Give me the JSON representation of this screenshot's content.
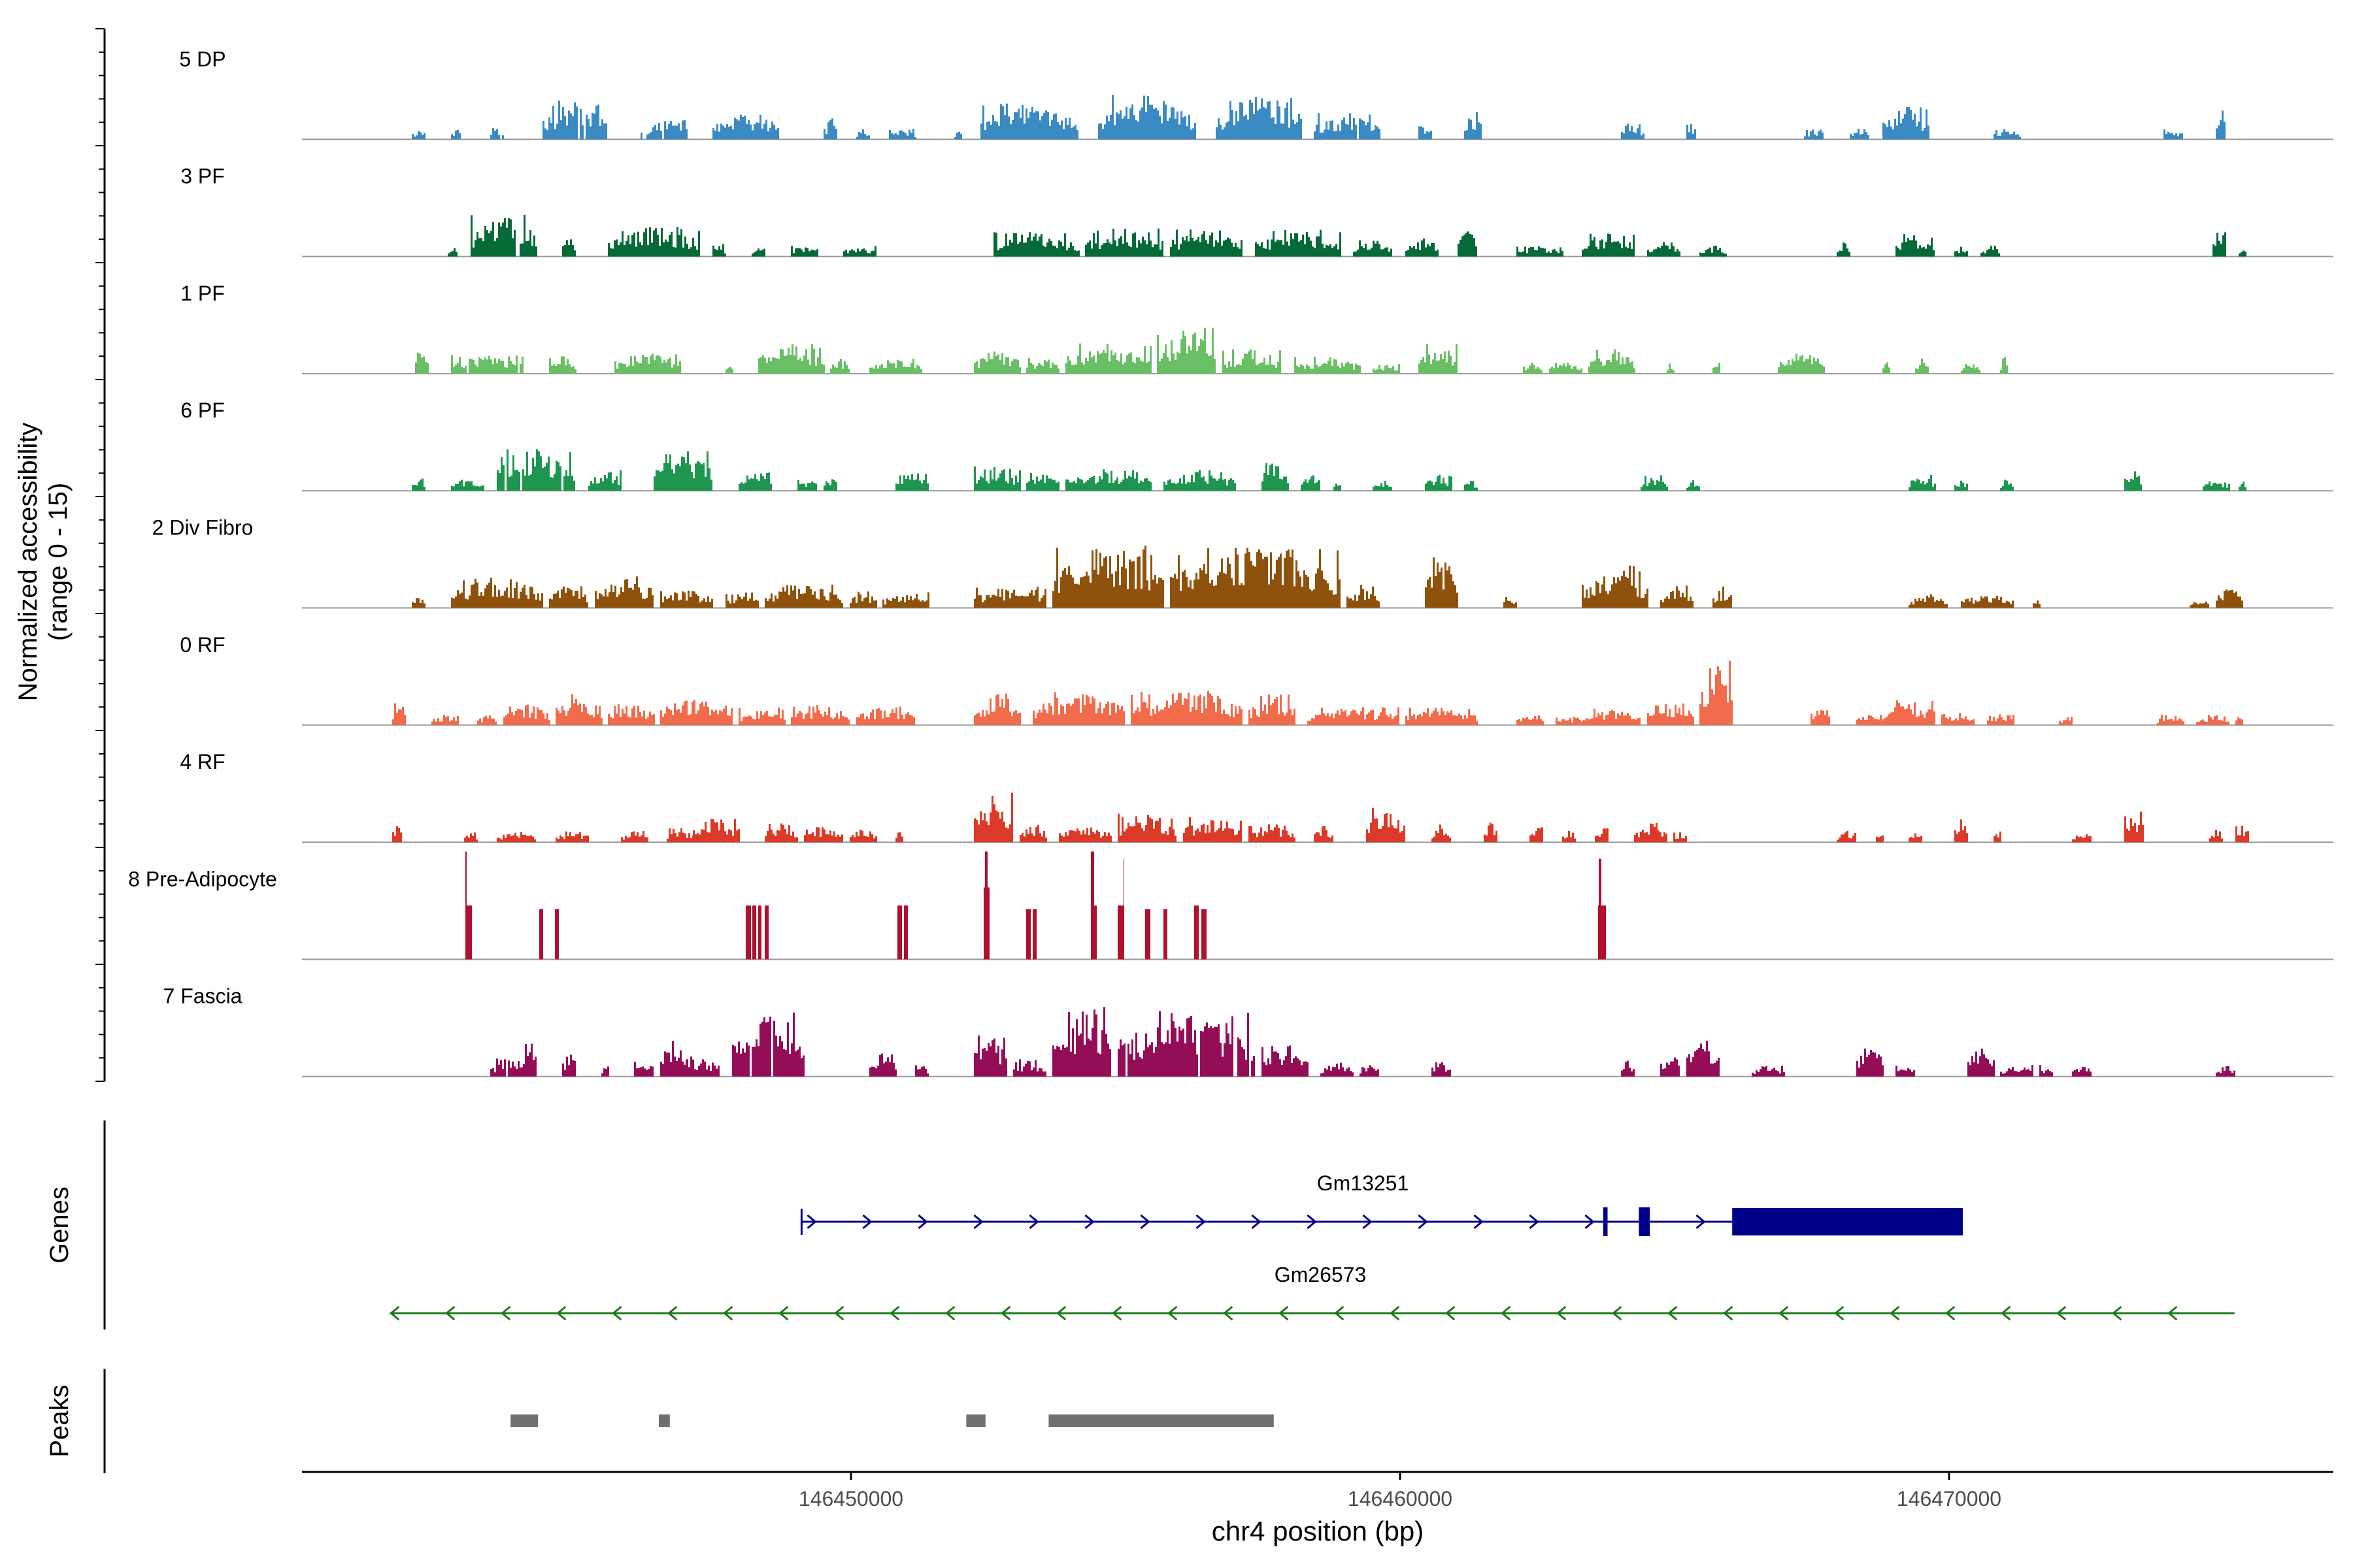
{
  "chart_data": {
    "type": "area",
    "title": "",
    "ylabel_lines": [
      "Normalized accessibility",
      "(range 0 - 15)"
    ],
    "xlabel": "chr4 position (bp)",
    "xlim": [
      146440000,
      146477000
    ],
    "ylim": [
      0,
      15
    ],
    "xticks": [
      146450000,
      146460000,
      146470000
    ],
    "xtick_labels": [
      "146450000",
      "146460000",
      "146470000"
    ],
    "baseline_color": "#999999",
    "tracks": [
      {
        "name": "5 DP",
        "color": "#3B8AC4",
        "profile": "dp"
      },
      {
        "name": "3 PF",
        "color": "#066A38",
        "profile": "pf3"
      },
      {
        "name": "1 PF",
        "color": "#6ABF66",
        "profile": "pf1"
      },
      {
        "name": "6 PF",
        "color": "#1E9650",
        "profile": "pf6"
      },
      {
        "name": "2 Div Fibro",
        "color": "#8E520D",
        "profile": "div"
      },
      {
        "name": "0 RF",
        "color": "#F26B4B",
        "profile": "rf0"
      },
      {
        "name": "4 RF",
        "color": "#DB3A28",
        "profile": "rf4"
      },
      {
        "name": "8 Pre-Adipocyte",
        "color": "#B0102E",
        "profile": "pre"
      },
      {
        "name": "7 Fascia",
        "color": "#940E57",
        "profile": "fas"
      }
    ],
    "genes_panel_label": "Genes",
    "genes": [
      {
        "name": "Gm13251",
        "start": 146449100,
        "end": 146470250,
        "strand": "+",
        "color": "#00008B",
        "thick_exons": [
          [
            146466050,
            146470250
          ]
        ],
        "thin_exons": [
          [
            146464350,
            146464550
          ],
          [
            146463700,
            146463780
          ]
        ]
      },
      {
        "name": "Gm26573",
        "start": 146441600,
        "end": 146475200,
        "strand": "-",
        "color": "#1A7A1A",
        "thick_exons": [],
        "thin_exons": []
      }
    ],
    "peaks_panel_label": "Peaks",
    "peak_color": "#707070",
    "peaks": [
      [
        146443800,
        146444300
      ],
      [
        146446500,
        146446700
      ],
      [
        146452100,
        146452450
      ],
      [
        146453600,
        146457700
      ]
    ]
  }
}
